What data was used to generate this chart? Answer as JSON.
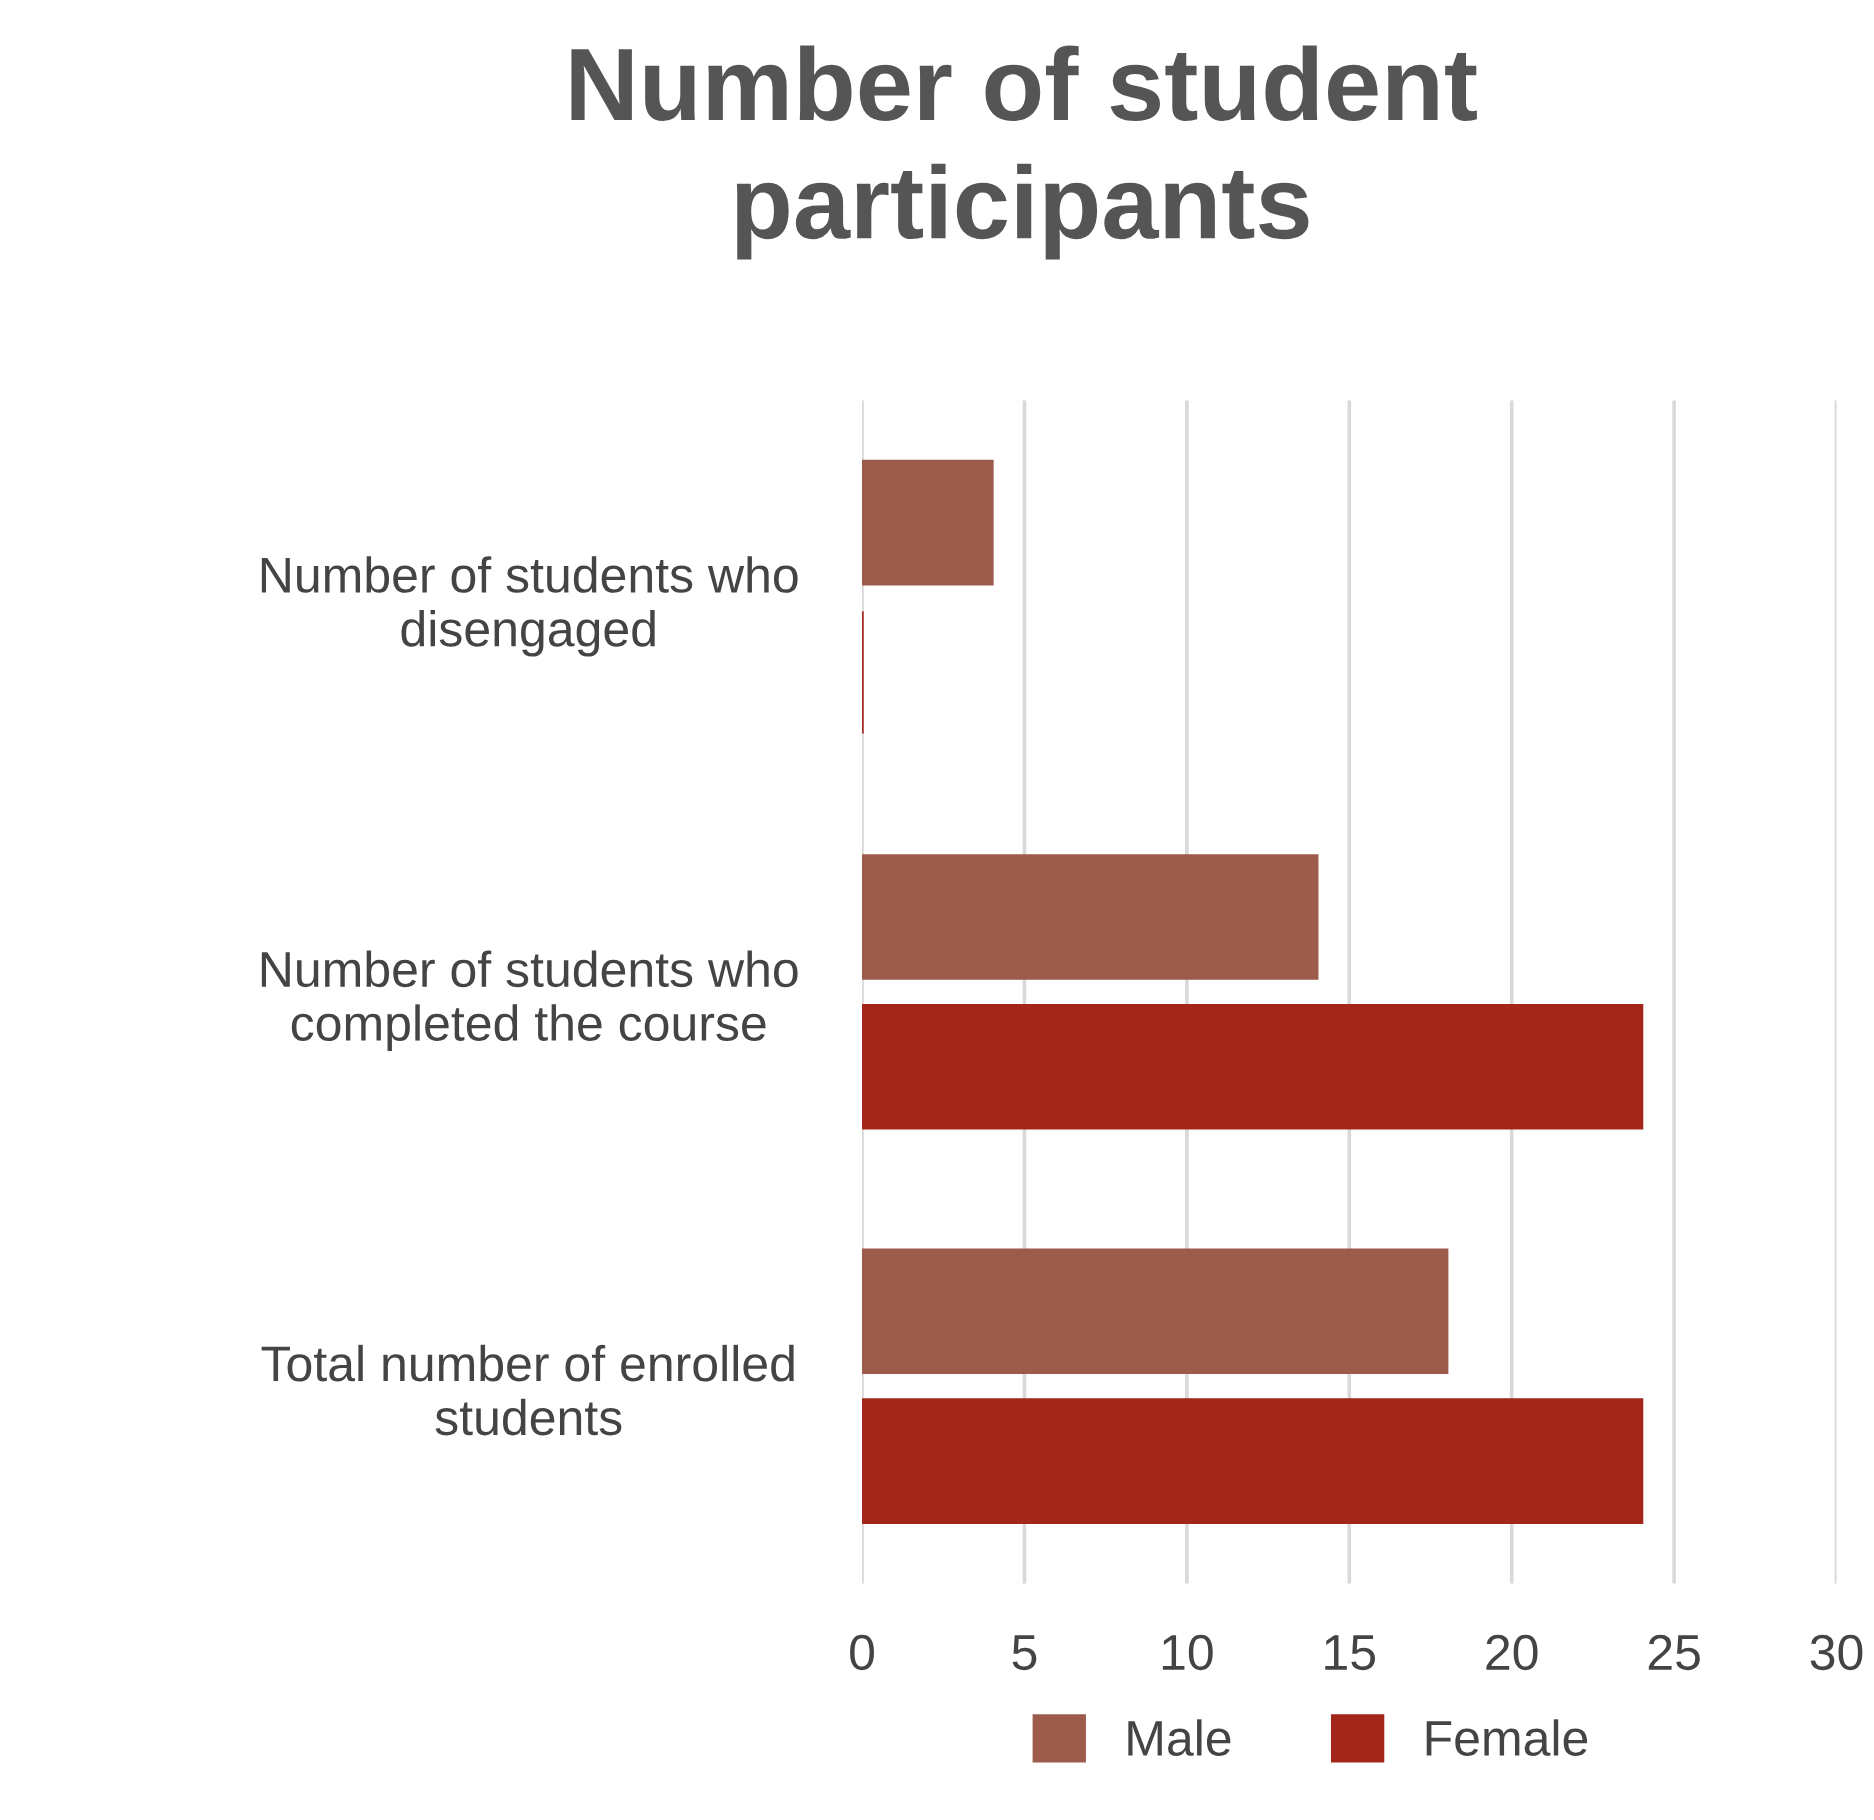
{
  "chart_data": {
    "type": "bar",
    "orientation": "horizontal",
    "title": "Number of student participants",
    "categories": [
      "Number of students who disengaged",
      "Number of students who completed the course",
      "Total number of enrolled students"
    ],
    "series": [
      {
        "name": "Male",
        "color": "#9c5b4b",
        "values": [
          4,
          14,
          18
        ]
      },
      {
        "name": "Female",
        "color": "#a3261b",
        "values": [
          0,
          24,
          24
        ]
      }
    ],
    "xlim": [
      0,
      30
    ],
    "xticks": [
      0,
      5,
      10,
      15,
      20,
      25,
      30
    ],
    "grid": "x",
    "legend": "bottom"
  }
}
